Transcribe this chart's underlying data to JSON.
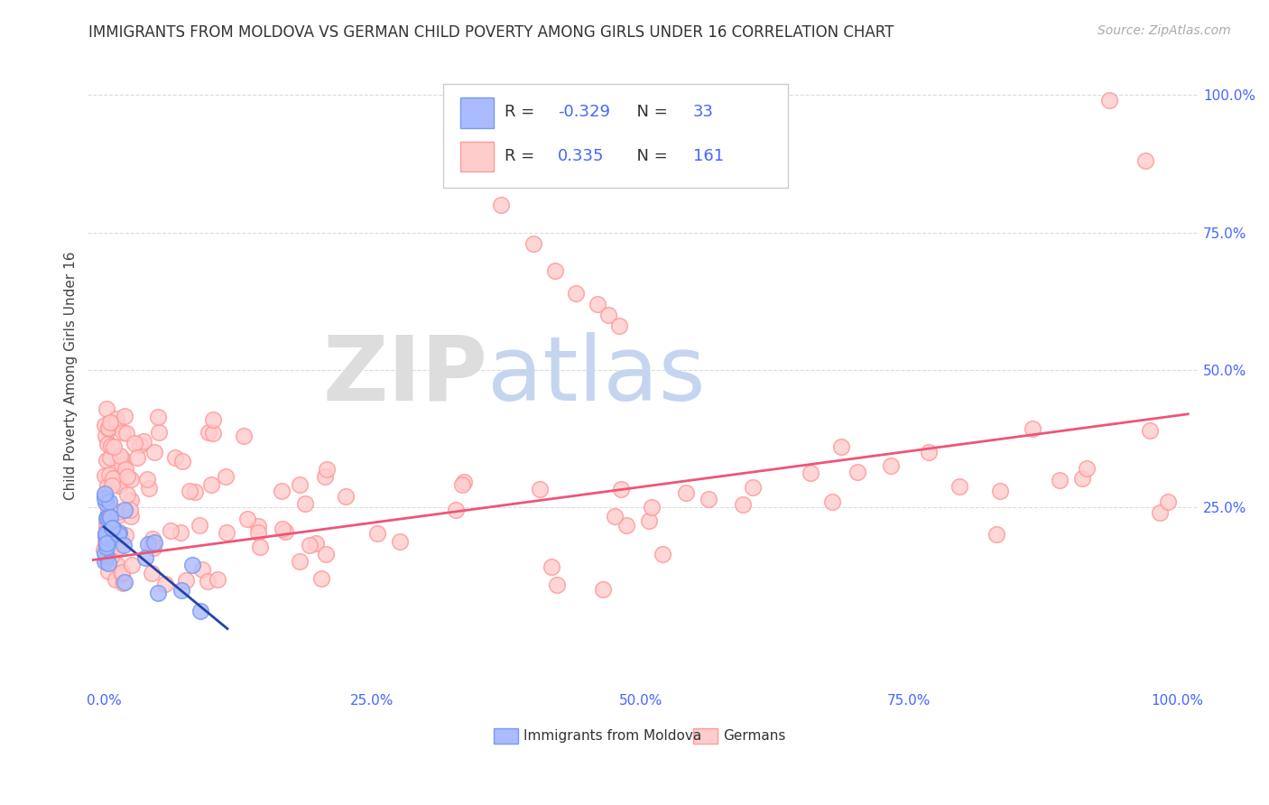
{
  "title": "IMMIGRANTS FROM MOLDOVA VS GERMAN CHILD POVERTY AMONG GIRLS UNDER 16 CORRELATION CHART",
  "source": "Source: ZipAtlas.com",
  "ylabel": "Child Poverty Among Girls Under 16",
  "watermark_ZIP": "ZIP",
  "watermark_atlas": "atlas",
  "blue_R": -0.329,
  "blue_N": 33,
  "pink_R": 0.335,
  "pink_N": 161,
  "blue_edge_color": "#7799ee",
  "pink_edge_color": "#ff9999",
  "blue_face_color": "#aabbff",
  "pink_face_color": "#ffcccc",
  "blue_line_color": "#2244aa",
  "pink_line_color": "#ee5577",
  "legend_label_blue": "Immigrants from Moldova",
  "legend_label_pink": "Germans",
  "tick_label_color": "#4466ff",
  "grid_color": "#cccccc",
  "title_color": "#333333",
  "r_value_color": "#4466ff",
  "n_value_color": "#4466ff"
}
